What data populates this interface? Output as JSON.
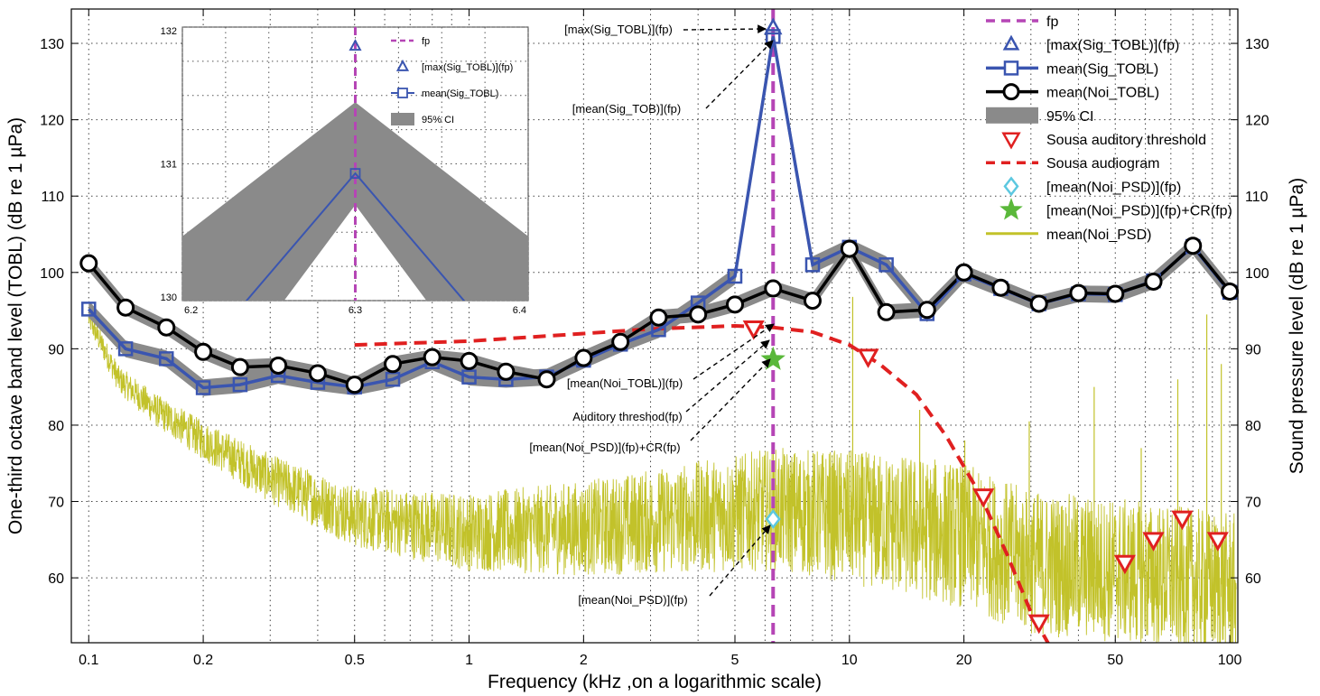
{
  "chart_data": [
    {
      "type": "line",
      "xlabel": "Frequency (kHz ,on a logarithmic scale)",
      "ylabel_left": "One-third octave band level (TOBL) (dB re 1 µPa)",
      "ylabel_right": "Sound pressure level (dB re 1 µPa)",
      "xscale": "log",
      "xlim": [
        0.09,
        105
      ],
      "ylim": [
        51.5,
        134.5
      ],
      "grid": "dotted",
      "legend_position": "top-right",
      "x_ticks": [
        0.1,
        0.2,
        0.5,
        1,
        2,
        5,
        10,
        20,
        50,
        100
      ],
      "x_tick_labels": [
        "0.1",
        "0.2",
        "0.5",
        "1",
        "2",
        "5",
        "10",
        "20",
        "50",
        "100"
      ],
      "y_ticks": [
        60,
        70,
        80,
        90,
        100,
        110,
        120,
        130
      ],
      "y_tick_labels": [
        "60",
        "70",
        "80",
        "90",
        "100",
        "110",
        "120",
        "130"
      ],
      "fp": 6.3,
      "series": [
        {
          "name": "mean(Sig_TOBL)",
          "color": "#3a55b0",
          "x": [
            0.1,
            0.125,
            0.16,
            0.2,
            0.25,
            0.315,
            0.4,
            0.5,
            0.63,
            0.8,
            1.0,
            1.25,
            1.6,
            2.0,
            2.5,
            3.15,
            4.0,
            5.0,
            6.3,
            8.0,
            10.0,
            12.5,
            16.0,
            20.0,
            25.0,
            31.5,
            40.0,
            50.0,
            63.0,
            80.0,
            100.0
          ],
          "values": [
            95.2,
            90.0,
            88.7,
            84.9,
            85.3,
            86.5,
            85.6,
            85.0,
            86.0,
            88.3,
            86.3,
            86.0,
            86.3,
            88.5,
            90.6,
            92.5,
            96.0,
            99.5,
            130.9,
            101.0,
            103.3,
            101.0,
            94.6,
            99.8,
            97.9,
            95.9,
            97.2,
            97.1,
            98.9,
            103.4,
            97.4
          ]
        },
        {
          "name": "mean(Noi_TOBL)",
          "color": "#000000",
          "x": [
            0.1,
            0.125,
            0.16,
            0.2,
            0.25,
            0.315,
            0.4,
            0.5,
            0.63,
            0.8,
            1.0,
            1.25,
            1.6,
            2.0,
            2.5,
            3.15,
            4.0,
            5.0,
            6.3,
            8.0,
            10.0,
            12.5,
            16.0,
            20.0,
            25.0,
            31.5,
            40.0,
            50.0,
            63.0,
            80.0,
            100.0
          ],
          "values": [
            101.2,
            95.4,
            92.8,
            89.6,
            87.6,
            87.8,
            86.8,
            85.3,
            88.0,
            88.9,
            88.4,
            87.0,
            86.0,
            88.8,
            90.9,
            94.1,
            94.5,
            95.8,
            97.9,
            96.3,
            103.1,
            94.8,
            95.1,
            100.0,
            98.0,
            95.9,
            97.3,
            97.2,
            98.8,
            103.5,
            97.5
          ]
        },
        {
          "name": "Sousa auditory threshold",
          "color": "#e02020",
          "x": [
            5.6,
            11.2,
            22.5,
            31.5,
            53.0,
            63.0,
            75.0,
            93.0
          ],
          "values": [
            92.7,
            89.0,
            70.7,
            54.2,
            62.0,
            65.0,
            67.8,
            65.0
          ]
        },
        {
          "name": "Sousa audiogram",
          "color": "#e02020",
          "x": [
            0.5,
            1.0,
            2.0,
            3.0,
            5.0,
            6.3,
            8.0,
            10.0,
            12.0,
            15.0,
            18.0,
            22.0,
            26.0,
            30.0,
            35.0
          ],
          "values": [
            90.5,
            91.0,
            92.0,
            92.6,
            93.0,
            92.8,
            92.2,
            90.5,
            88.0,
            84.0,
            78.5,
            71.0,
            63.0,
            55.5,
            49.5
          ]
        },
        {
          "name": "[max(Sig_TOBL)](fp)",
          "color": "#3a55b0",
          "x": [
            6.3
          ],
          "values": [
            132.0
          ]
        },
        {
          "name": "[mean(Noi_PSD)](fp)",
          "color": "#5cc8e0",
          "x": [
            6.3
          ],
          "values": [
            67.7
          ]
        },
        {
          "name": "[mean(Noi_PSD)](fp)+CR(fp)",
          "color": "#5ab83a",
          "x": [
            6.3
          ],
          "values": [
            88.6
          ]
        },
        {
          "name": "mean(Noi_PSD)",
          "color": "#c2c22a",
          "x": [
            0.1,
            0.12,
            0.15,
            0.2,
            0.3,
            0.5,
            1.0,
            2.0,
            4.0,
            6.3,
            10.0,
            20.0,
            30.0,
            50.0,
            100.0
          ],
          "values": [
            94.0,
            86.0,
            82.0,
            78.0,
            73.0,
            68.0,
            66.0,
            66.5,
            68.0,
            69.0,
            68.0,
            65.5,
            62.0,
            61.0,
            59.0
          ]
        }
      ],
      "ci_band": {
        "name": "95% CI",
        "color": "#8a8a8a"
      },
      "legend": [
        {
          "label": "fp",
          "symbol": "dash",
          "color": "#b545b5"
        },
        {
          "label": "[max(Sig_TOBL)](fp)",
          "symbol": "triangle-up",
          "color": "#3a55b0"
        },
        {
          "label": "mean(Sig_TOBL)",
          "symbol": "line-square",
          "color": "#3a55b0"
        },
        {
          "label": "mean(Noi_TOBL)",
          "symbol": "line-circle",
          "color": "#000000"
        },
        {
          "label": "95% CI",
          "symbol": "patch",
          "color": "#8a8a8a"
        },
        {
          "label": "Sousa auditory threshold",
          "symbol": "triangle-down",
          "color": "#e02020"
        },
        {
          "label": "Sousa audiogram",
          "symbol": "dash",
          "color": "#e02020"
        },
        {
          "label": "[mean(Noi_PSD)](fp)",
          "symbol": "diamond",
          "color": "#5cc8e0"
        },
        {
          "label": "[mean(Noi_PSD)](fp)+CR(fp)",
          "symbol": "star",
          "color": "#5ab83a"
        },
        {
          "label": "mean(Noi_PSD)",
          "symbol": "line",
          "color": "#c2c22a"
        }
      ],
      "annotations": [
        "[max(Sig_TOBL)](fp)",
        "[mean(Sig_TOB)](fp)",
        "[mean(Noi_TOBL)](fp)",
        "Auditory threshod(fp)",
        "[mean(Noi_PSD)](fp)+CR(fp)",
        "[mean(Noi_PSD)](fp)"
      ]
    },
    {
      "type": "line",
      "role": "inset",
      "xlim": [
        6.2,
        6.4
      ],
      "ylim": [
        130,
        132
      ],
      "x_ticks": [
        6.2,
        6.3,
        6.4
      ],
      "x_tick_labels": [
        "6.2",
        "6.3",
        "6.4"
      ],
      "y_ticks": [
        130,
        131,
        132
      ],
      "y_tick_labels": [
        "130",
        "131",
        "132"
      ],
      "grid": "dotted",
      "series": [
        {
          "name": "mean(Sig_TOBL)",
          "color": "#3a55b0",
          "x": [
            6.2,
            6.3,
            6.4
          ],
          "values": [
            129.45,
            130.93,
            129.45
          ]
        },
        {
          "name": "[max(Sig_TOBL)](fp)",
          "color": "#3a55b0",
          "x": [
            6.3
          ],
          "values": [
            131.86
          ]
        }
      ],
      "ci_band": {
        "name": "95% CI",
        "x": [
          6.2,
          6.3,
          6.4
        ],
        "upper": [
          130.47,
          131.45,
          130.47
        ],
        "lower": [
          129.0,
          130.7,
          129.0
        ]
      },
      "legend": [
        {
          "label": "fp",
          "symbol": "dash",
          "color": "#b545b5"
        },
        {
          "label": "[max(Sig_TOBL)](fp)",
          "symbol": "triangle-up",
          "color": "#3a55b0"
        },
        {
          "label": "mean(Sig_TOBL)",
          "symbol": "line-square",
          "color": "#3a55b0"
        },
        {
          "label": "95% CI",
          "symbol": "patch",
          "color": "#8a8a8a"
        }
      ]
    }
  ]
}
